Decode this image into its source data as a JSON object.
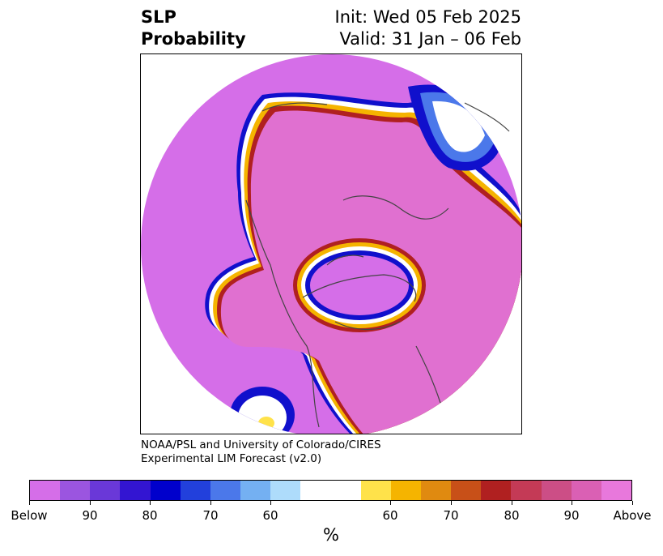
{
  "title": {
    "left_line1": "SLP",
    "left_line2": "Probability",
    "right_line1": "Init: Wed 05 Feb 2025",
    "right_line2": "Valid: 31 Jan – 06 Feb"
  },
  "credit": {
    "line1": "NOAA/PSL and University of Colorado/CIRES",
    "line2": "Experimental LIM Forecast (v2.0)"
  },
  "colorbar": {
    "colors": [
      "#d56ee8",
      "#9b55e0",
      "#6a38d8",
      "#3315d2",
      "#0000cc",
      "#2240dc",
      "#4b78ea",
      "#74b0f2",
      "#aedcfb",
      "#ffffff",
      "#ffe24a",
      "#f5b400",
      "#e08a10",
      "#c85018",
      "#b02020",
      "#c43a56",
      "#cc4e86",
      "#da60b4",
      "#e878dc"
    ],
    "tick_labels": [
      "Below",
      "90",
      "80",
      "70",
      "60",
      "60",
      "70",
      "80",
      "90",
      "Above"
    ],
    "units": "%"
  },
  "map": {
    "colors": {
      "below": "#d56ee8",
      "above": "#e878dc",
      "above_core": "#e070d0",
      "outline": "#444444"
    }
  }
}
